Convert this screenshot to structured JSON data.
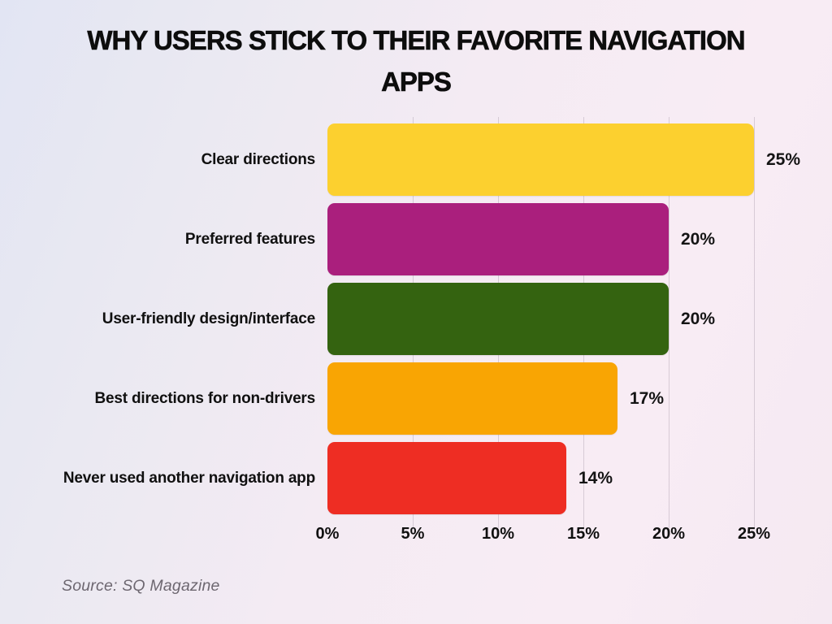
{
  "title": "WHY USERS STICK TO THEIR FAVORITE NAVIGATION APPS",
  "title_line1": "WHY USERS STICK TO THEIR FAVORITE NAVIGATION",
  "title_line2": "APPS",
  "source": "Source: SQ Magazine",
  "colors": {
    "title_text": "#0d0d0d",
    "label_text": "#101010",
    "source_text": "#6d6770",
    "gridline": "rgba(122,110,128,0.26)",
    "background_left": "#e2e5f3",
    "background_right": "#f8ecf4"
  },
  "chart_data": {
    "type": "bar",
    "orientation": "horizontal",
    "title": "WHY USERS STICK TO THEIR FAVORITE NAVIGATION APPS",
    "categories": [
      "Clear directions",
      "Preferred features",
      "User-friendly design/interface",
      "Best directions for non-drivers",
      "Never used another navigation app"
    ],
    "values": [
      25,
      20,
      20,
      17,
      14
    ],
    "value_labels": [
      "25%",
      "20%",
      "20%",
      "17%",
      "14%"
    ],
    "bar_colors": [
      "#FCD02F",
      "#AA1F7D",
      "#346310",
      "#F9A503",
      "#EE2D23"
    ],
    "x_ticks": [
      {
        "label": "0%",
        "value": 0
      },
      {
        "label": "5%",
        "value": 5
      },
      {
        "label": "10%",
        "value": 10
      },
      {
        "label": "15%",
        "value": 15
      },
      {
        "label": "20%",
        "value": 20
      },
      {
        "label": "25%",
        "value": 25
      }
    ],
    "xlim": [
      0,
      25
    ],
    "grid": true,
    "legend": false,
    "source": "Source: SQ Magazine"
  }
}
